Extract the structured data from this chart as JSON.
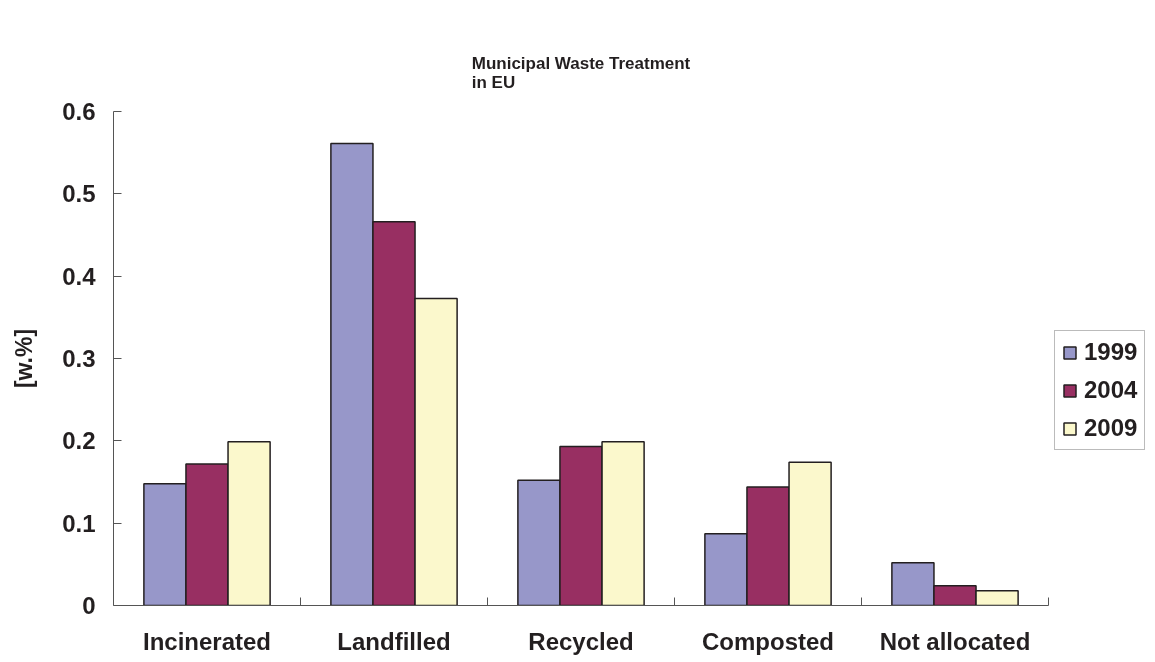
{
  "chart_data": {
    "type": "bar",
    "title": "Municipal Waste Treatment\nin EU",
    "ylabel": "[w.%]",
    "categories": [
      "Incinerated",
      "Landfilled",
      "Recycled",
      "Composted",
      "Not allocated"
    ],
    "series": [
      {
        "name": "1999",
        "color": "#9797c9",
        "values": [
          0.148,
          0.561,
          0.152,
          0.087,
          0.052
        ]
      },
      {
        "name": "2004",
        "color": "#982f62",
        "values": [
          0.172,
          0.466,
          0.193,
          0.144,
          0.024
        ]
      },
      {
        "name": "2009",
        "color": "#fbf8cc",
        "values": [
          0.199,
          0.373,
          0.199,
          0.174,
          0.018
        ]
      }
    ],
    "ylim": [
      0,
      0.6
    ],
    "yticks": [
      0,
      0.1,
      0.2,
      0.3,
      0.4,
      0.5,
      0.6
    ],
    "legend": "right"
  }
}
